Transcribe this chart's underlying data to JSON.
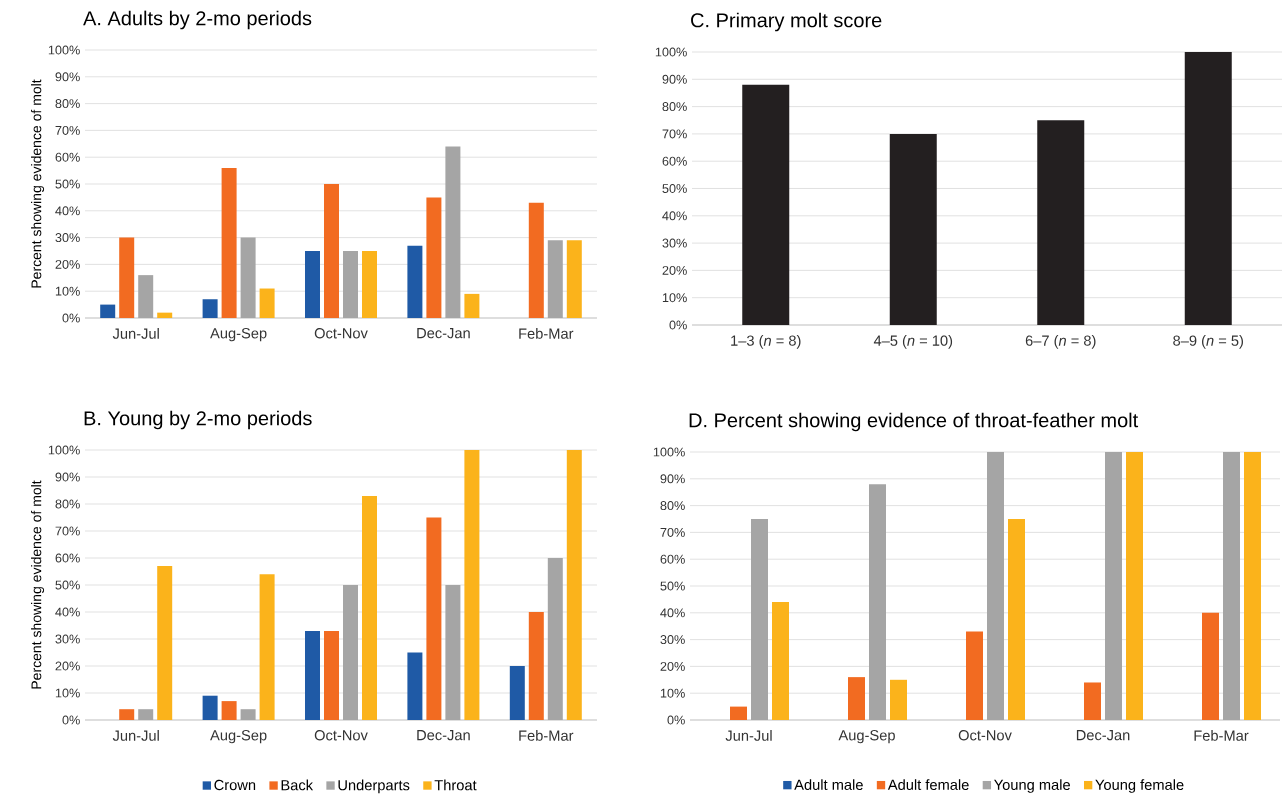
{
  "chart_data": [
    {
      "type": "bar",
      "title": "A. Adults by 2-mo periods",
      "ylabel": "Percent showing evidence of molt",
      "categories": [
        "Jun-Jul",
        "Aug-Sep",
        "Oct-Nov",
        "Dec-Jan",
        "Feb-Mar"
      ],
      "series": [
        {
          "color": "#1f5aa6",
          "values": [
            5,
            7,
            25,
            27,
            0
          ]
        },
        {
          "color": "#f26b21",
          "values": [
            30,
            56,
            50,
            45,
            43
          ]
        },
        {
          "color": "#a5a5a5",
          "values": [
            16,
            30,
            25,
            64,
            29
          ]
        },
        {
          "color": "#fbb31b",
          "values": [
            2,
            11,
            25,
            9,
            29
          ]
        }
      ],
      "ylim": [
        0,
        100
      ],
      "yticks": [
        {
          "value": 0,
          "label": "0%"
        },
        {
          "value": 10,
          "label": "10%"
        },
        {
          "value": 20,
          "label": "20%"
        },
        {
          "value": 30,
          "label": "30%"
        },
        {
          "value": 40,
          "label": "40%"
        },
        {
          "value": 50,
          "label": "50%"
        },
        {
          "value": 60,
          "label": "60%"
        },
        {
          "value": 70,
          "label": "70%"
        },
        {
          "value": 80,
          "label": "80%"
        },
        {
          "value": 90,
          "label": "90%"
        },
        {
          "value": 100,
          "label": "100%"
        }
      ],
      "grid": "y",
      "legend": false
    },
    {
      "type": "bar",
      "title": "B. Young by 2-mo periods",
      "ylabel": "Percent showing evidence of molt",
      "categories": [
        "Jun-Jul",
        "Aug-Sep",
        "Oct-Nov",
        "Dec-Jan",
        "Feb-Mar"
      ],
      "series": [
        {
          "name": "Crown",
          "color": "#1f5aa6",
          "values": [
            0,
            9,
            33,
            25,
            20
          ]
        },
        {
          "name": "Back",
          "color": "#f26b21",
          "values": [
            4,
            7,
            33,
            75,
            40
          ]
        },
        {
          "name": "Underparts",
          "color": "#a5a5a5",
          "values": [
            4,
            4,
            50,
            50,
            60
          ]
        },
        {
          "name": "Throat",
          "color": "#fbb31b",
          "values": [
            57,
            54,
            83,
            100,
            100
          ]
        }
      ],
      "ylim": [
        0,
        100
      ],
      "yticks": [
        {
          "value": 0,
          "label": "0%"
        },
        {
          "value": 10,
          "label": "10%"
        },
        {
          "value": 20,
          "label": "20%"
        },
        {
          "value": 30,
          "label": "30%"
        },
        {
          "value": 40,
          "label": "40%"
        },
        {
          "value": 50,
          "label": "50%"
        },
        {
          "value": 60,
          "label": "60%"
        },
        {
          "value": 70,
          "label": "70%"
        },
        {
          "value": 80,
          "label": "80%"
        },
        {
          "value": 90,
          "label": "90%"
        },
        {
          "value": 100,
          "label": "100%"
        }
      ],
      "grid": "y",
      "legend": "bottom"
    },
    {
      "type": "bar",
      "title": "C. Primary molt score",
      "categories": [
        "1–3 (*n* = 8)",
        "4–5 (*n* = 10)",
        "6–7 (*n* = 8)",
        "8–9 (*n* = 5)"
      ],
      "values": [
        88,
        70,
        75,
        100
      ],
      "color": "#231f20",
      "ylim": [
        0,
        100
      ],
      "yticks": [
        {
          "value": 0,
          "label": "0%"
        },
        {
          "value": 10,
          "label": "10%"
        },
        {
          "value": 20,
          "label": "20%"
        },
        {
          "value": 30,
          "label": "30%"
        },
        {
          "value": 40,
          "label": "40%"
        },
        {
          "value": 50,
          "label": "50%"
        },
        {
          "value": 60,
          "label": "60%"
        },
        {
          "value": 70,
          "label": "70%"
        },
        {
          "value": 80,
          "label": "80%"
        },
        {
          "value": 90,
          "label": "90%"
        },
        {
          "value": 100,
          "label": "100%"
        }
      ],
      "grid": "y",
      "legend": false
    },
    {
      "type": "bar",
      "title": "D. Percent showing evidence of throat-feather molt",
      "categories": [
        "Jun-Jul",
        "Aug-Sep",
        "Oct-Nov",
        "Dec-Jan",
        "Feb-Mar"
      ],
      "series": [
        {
          "name": "Adult male",
          "color": "#1f5aa6",
          "values": [
            0,
            0,
            0,
            0,
            0
          ]
        },
        {
          "name": "Adult female",
          "color": "#f26b21",
          "values": [
            5,
            16,
            33,
            14,
            40
          ]
        },
        {
          "name": "Young male",
          "color": "#a5a5a5",
          "values": [
            75,
            88,
            100,
            100,
            100
          ]
        },
        {
          "name": "Young female",
          "color": "#fbb31b",
          "values": [
            44,
            15,
            75,
            100,
            100
          ]
        }
      ],
      "ylim": [
        0,
        100
      ],
      "yticks": [
        {
          "value": 0,
          "label": "0%"
        },
        {
          "value": 10,
          "label": "10%"
        },
        {
          "value": 20,
          "label": "20%"
        },
        {
          "value": 30,
          "label": "30%"
        },
        {
          "value": 40,
          "label": "40%"
        },
        {
          "value": 50,
          "label": "50%"
        },
        {
          "value": 60,
          "label": "60%"
        },
        {
          "value": 70,
          "label": "70%"
        },
        {
          "value": 80,
          "label": "80%"
        },
        {
          "value": 90,
          "label": "90%"
        },
        {
          "value": 100,
          "label": "100%"
        }
      ],
      "grid": "y",
      "legend": "bottom"
    }
  ]
}
